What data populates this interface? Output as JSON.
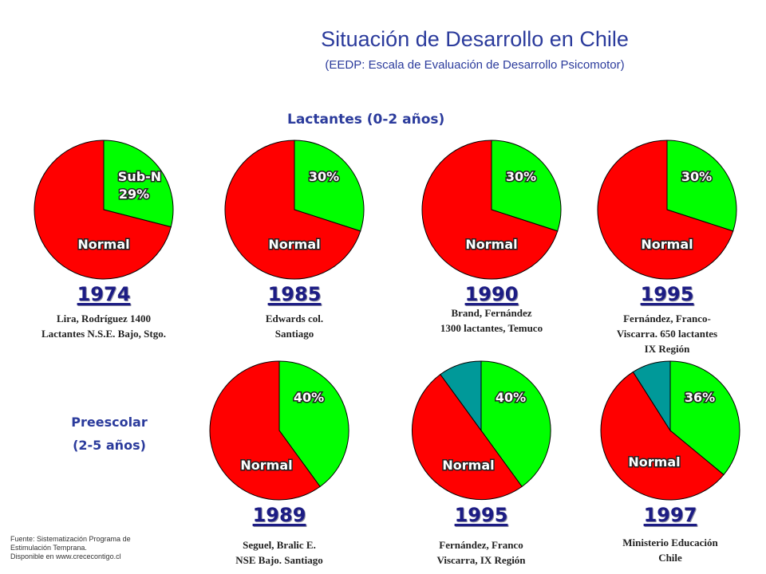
{
  "title": "Situación de Desarrollo en Chile",
  "subtitle": "(EEDP: Escala de Evaluación de Desarrollo Psicomotor)",
  "groups": {
    "lactantes": "Lactantes (0-2 años)",
    "preescolar_1": "Preescolar",
    "preescolar_2": "(2-5 años)"
  },
  "footnote": {
    "line1": "Fuente: Sistematización Programa de",
    "line2": "Estimulación Temprana.",
    "line3": "Disponible en www.crececontigo.cl"
  },
  "colors": {
    "normal": "#ff0000",
    "sub": "#00ff00",
    "other": "#009999"
  },
  "chart_data": [
    {
      "type": "pie",
      "group": "lactantes",
      "year": "1974",
      "source": [
        "Lira, Rodríguez 1400",
        "Lactantes N.S.E. Bajo, Stgo."
      ],
      "slices": [
        {
          "label": "Sub-N",
          "value": 29,
          "percent": "29%"
        },
        {
          "label": "Normal",
          "value": 71
        }
      ]
    },
    {
      "type": "pie",
      "group": "lactantes",
      "year": "1985",
      "source": [
        "Edwards col.",
        "Santiago"
      ],
      "slices": [
        {
          "value": 30,
          "percent": "30%"
        },
        {
          "label": "Normal",
          "value": 70
        }
      ]
    },
    {
      "type": "pie",
      "group": "lactantes",
      "year": "1990",
      "source": [
        "Brand, Fernández",
        "1300 lactantes, Temuco"
      ],
      "slices": [
        {
          "value": 30,
          "percent": "30%"
        },
        {
          "label": "Normal",
          "value": 70
        }
      ]
    },
    {
      "type": "pie",
      "group": "lactantes",
      "year": "1995",
      "source": [
        "Fernández, Franco-",
        "Viscarra. 650 lactantes",
        "IX Región"
      ],
      "slices": [
        {
          "value": 30,
          "percent": "30%"
        },
        {
          "label": "Normal",
          "value": 70
        }
      ]
    },
    {
      "type": "pie",
      "group": "preescolar",
      "year": "1989",
      "source": [
        "Seguel, Bralic E.",
        "NSE Bajo. Santiago"
      ],
      "slices": [
        {
          "value": 40,
          "percent": "40%"
        },
        {
          "label": "Normal",
          "value": 60
        }
      ]
    },
    {
      "type": "pie",
      "group": "preescolar",
      "year": "1995",
      "source": [
        "Fernández, Franco",
        "Viscarra, IX Región"
      ],
      "slices": [
        {
          "value": 40,
          "percent": "40%"
        },
        {
          "label": "Normal",
          "value": 50
        },
        {
          "value": 10
        }
      ]
    },
    {
      "type": "pie",
      "group": "preescolar",
      "year": "1997",
      "source": [
        "Ministerio Educación",
        "Chile"
      ],
      "slices": [
        {
          "value": 36,
          "percent": "36%"
        },
        {
          "label": "Normal",
          "value": 55
        },
        {
          "value": 9
        }
      ]
    }
  ]
}
